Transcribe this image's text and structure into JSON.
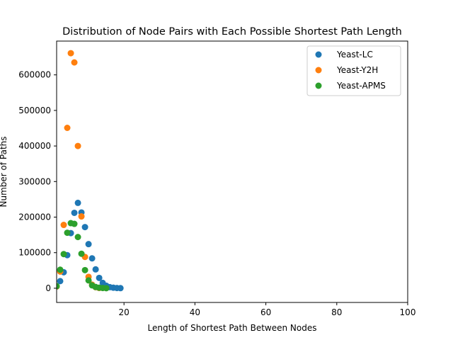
{
  "chart_data": {
    "type": "scatter",
    "title": "Distribution of Node Pairs with Each Possible Shortest Path Length",
    "xlabel": "Length of Shortest Path Between Nodes",
    "ylabel": "Number of Paths",
    "xlim": [
      1,
      100
    ],
    "ylim": [
      -40000,
      695000
    ],
    "x_ticks": [
      20,
      40,
      60,
      80,
      100
    ],
    "y_ticks": [
      0,
      100000,
      200000,
      300000,
      400000,
      500000,
      600000
    ],
    "legend_position": "top-right",
    "grid": false,
    "series": [
      {
        "name": "Yeast-LC",
        "color": "#1f77b4",
        "points": [
          [
            1,
            5000
          ],
          [
            2,
            20000
          ],
          [
            3,
            45000
          ],
          [
            4,
            93000
          ],
          [
            5,
            155000
          ],
          [
            6,
            212000
          ],
          [
            7,
            240000
          ],
          [
            8,
            213000
          ],
          [
            9,
            172000
          ],
          [
            10,
            124000
          ],
          [
            11,
            84000
          ],
          [
            12,
            53000
          ],
          [
            13,
            29000
          ],
          [
            14,
            15000
          ],
          [
            15,
            7000
          ],
          [
            16,
            3000
          ],
          [
            17,
            1500
          ],
          [
            18,
            700
          ],
          [
            19,
            300
          ]
        ]
      },
      {
        "name": "Yeast-Y2H",
        "color": "#ff7f0e",
        "points": [
          [
            1,
            5000
          ],
          [
            2,
            47000
          ],
          [
            3,
            178000
          ],
          [
            4,
            451000
          ],
          [
            5,
            661000
          ],
          [
            6,
            635000
          ],
          [
            7,
            400000
          ],
          [
            8,
            202000
          ],
          [
            9,
            88000
          ],
          [
            10,
            32000
          ],
          [
            11,
            10000
          ],
          [
            12,
            3000
          ],
          [
            13,
            800
          ]
        ]
      },
      {
        "name": "Yeast-APMS",
        "color": "#2ca02c",
        "points": [
          [
            1,
            6000
          ],
          [
            2,
            52000
          ],
          [
            3,
            96000
          ],
          [
            4,
            156000
          ],
          [
            5,
            183000
          ],
          [
            6,
            181000
          ],
          [
            7,
            144000
          ],
          [
            8,
            97000
          ],
          [
            9,
            51000
          ],
          [
            10,
            22000
          ],
          [
            11,
            8000
          ],
          [
            12,
            3500
          ],
          [
            13,
            1500
          ],
          [
            14,
            600
          ],
          [
            15,
            200
          ]
        ]
      }
    ]
  }
}
